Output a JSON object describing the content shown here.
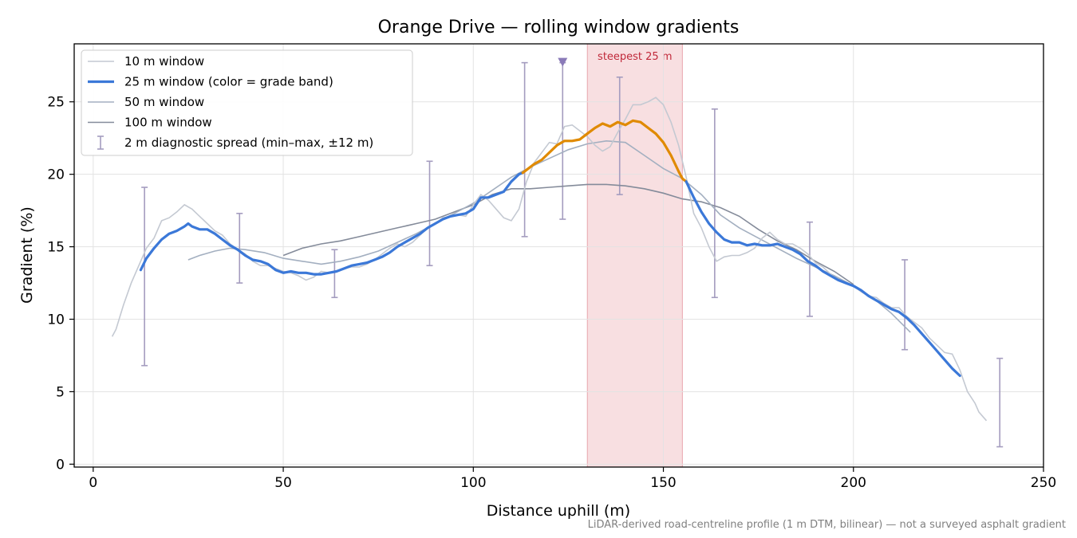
{
  "chart_data": {
    "type": "line",
    "title": "Orange Drive — rolling window gradients",
    "xlabel": "Distance uphill (m)",
    "ylabel": "Gradient (%)",
    "xlim": [
      -5,
      250
    ],
    "ylim": [
      -0.2,
      29
    ],
    "xticks": [
      0,
      50,
      100,
      150,
      200,
      250
    ],
    "yticks": [
      0,
      5,
      10,
      15,
      20,
      25
    ],
    "grid": true,
    "legend_position": "upper-left",
    "legend": [
      "10 m window",
      "25 m window (color = grade band)",
      "50 m window",
      "100 m window",
      "2 m diagnostic spread (min–max, ±12 m)"
    ],
    "series": [
      {
        "name": "10 m window",
        "color": "#c4c9d2",
        "x": [
          5,
          6,
          8,
          10,
          12,
          14,
          16,
          18,
          20,
          22,
          24,
          26,
          28,
          30,
          32,
          34,
          36,
          38,
          40,
          42,
          44,
          46,
          48,
          50,
          52,
          54,
          56,
          58,
          60,
          62,
          64,
          66,
          68,
          70,
          72,
          74,
          76,
          78,
          80,
          82,
          84,
          86,
          88,
          90,
          92,
          94,
          96,
          98,
          100,
          102,
          104,
          106,
          108,
          110,
          112,
          114,
          116,
          118,
          120,
          122,
          124,
          126,
          128,
          130,
          132,
          134,
          136,
          138,
          140,
          142,
          144,
          146,
          148,
          150,
          152,
          154,
          156,
          158,
          160,
          162,
          164,
          166,
          168,
          170,
          172,
          174,
          176,
          178,
          180,
          182,
          184,
          186,
          188,
          190,
          192,
          194,
          196,
          198,
          200,
          202,
          204,
          206,
          208,
          210,
          212,
          214,
          216,
          218,
          220,
          222,
          224,
          226,
          228,
          230,
          232,
          233,
          235
        ],
        "y": [
          8.8,
          9.3,
          11.0,
          12.5,
          13.7,
          14.9,
          15.6,
          16.8,
          17.0,
          17.4,
          17.9,
          17.6,
          17.1,
          16.6,
          16.1,
          15.8,
          15.2,
          14.8,
          14.5,
          14.0,
          13.7,
          13.7,
          13.5,
          13.3,
          13.2,
          13.0,
          12.7,
          12.9,
          13.3,
          13.2,
          13.3,
          13.5,
          13.6,
          13.6,
          13.8,
          14.1,
          14.5,
          14.9,
          15.2,
          15.0,
          15.3,
          15.8,
          16.3,
          16.6,
          17.0,
          17.1,
          17.2,
          17.1,
          17.9,
          18.6,
          18.2,
          17.6,
          17.0,
          16.8,
          17.6,
          19.5,
          20.8,
          21.5,
          22.2,
          22.1,
          23.3,
          23.4,
          23.0,
          22.6,
          22.0,
          21.6,
          21.9,
          22.9,
          23.8,
          24.8,
          24.8,
          25.0,
          25.3,
          24.8,
          23.6,
          22.0,
          19.8,
          17.3,
          16.3,
          15.0,
          14.0,
          14.3,
          14.4,
          14.4,
          14.6,
          14.9,
          15.6,
          16.0,
          15.5,
          15.2,
          15.2,
          14.9,
          14.5,
          13.9,
          13.6,
          13.1,
          12.7,
          12.5,
          12.3,
          11.9,
          11.6,
          11.5,
          11.1,
          10.8,
          10.8,
          10.2,
          9.8,
          9.4,
          8.7,
          8.2,
          7.7,
          7.6,
          6.5,
          5.0,
          4.2,
          3.6,
          3.0
        ]
      },
      {
        "name": "25 m window (color = grade band)",
        "color": "#3b78d8",
        "band_color": "#e08a00",
        "band_range": [
          113,
          155
        ],
        "x": [
          12.5,
          14,
          16,
          18,
          20,
          22,
          24,
          25,
          26,
          28,
          30,
          32,
          34,
          36,
          38,
          40,
          42,
          44,
          46,
          48,
          50,
          52,
          54,
          56,
          58,
          60,
          62,
          64,
          66,
          68,
          70,
          72,
          74,
          76,
          78,
          80,
          82,
          84,
          86,
          88,
          90,
          92,
          94,
          96,
          98,
          100,
          102,
          104,
          106,
          108,
          110,
          112,
          113,
          114,
          116,
          118,
          120,
          122,
          124,
          126,
          128,
          130,
          132,
          134,
          136,
          138,
          140,
          142,
          144,
          146,
          148,
          150,
          152,
          154,
          155,
          156,
          158,
          160,
          162,
          164,
          166,
          168,
          170,
          172,
          174,
          176,
          178,
          180,
          182,
          184,
          186,
          188,
          190,
          192,
          194,
          196,
          198,
          200,
          202,
          204,
          206,
          208,
          210,
          212,
          214,
          216,
          218,
          220,
          222,
          224,
          226,
          228
        ],
        "y": [
          13.4,
          14.2,
          14.9,
          15.5,
          15.9,
          16.1,
          16.4,
          16.6,
          16.4,
          16.2,
          16.2,
          15.9,
          15.5,
          15.1,
          14.8,
          14.4,
          14.1,
          14.0,
          13.8,
          13.4,
          13.2,
          13.3,
          13.2,
          13.2,
          13.1,
          13.1,
          13.2,
          13.3,
          13.5,
          13.7,
          13.8,
          13.9,
          14.1,
          14.3,
          14.6,
          15.0,
          15.3,
          15.6,
          15.9,
          16.3,
          16.6,
          16.9,
          17.1,
          17.2,
          17.3,
          17.6,
          18.4,
          18.4,
          18.6,
          18.8,
          19.5,
          20.0,
          20.1,
          20.3,
          20.7,
          21.0,
          21.5,
          22.0,
          22.3,
          22.3,
          22.4,
          22.8,
          23.2,
          23.5,
          23.3,
          23.6,
          23.4,
          23.7,
          23.6,
          23.2,
          22.8,
          22.2,
          21.3,
          20.2,
          19.7,
          19.5,
          18.4,
          17.4,
          16.6,
          16.0,
          15.5,
          15.3,
          15.3,
          15.1,
          15.2,
          15.1,
          15.1,
          15.2,
          15.0,
          14.8,
          14.5,
          14.0,
          13.7,
          13.3,
          13.0,
          12.7,
          12.5,
          12.3,
          12.0,
          11.6,
          11.3,
          11.0,
          10.7,
          10.5,
          10.1,
          9.6,
          9.0,
          8.4,
          7.8,
          7.2,
          6.6,
          6.1
        ]
      },
      {
        "name": "50 m window",
        "color": "#a3afc0",
        "x": [
          25,
          28,
          32,
          36,
          40,
          45,
          50,
          55,
          60,
          65,
          70,
          75,
          80,
          85,
          90,
          95,
          100,
          105,
          110,
          115,
          120,
          125,
          130,
          135,
          140,
          145,
          150,
          155,
          160,
          165,
          170,
          175,
          180,
          185,
          190,
          195,
          200,
          205,
          210,
          215
        ],
        "y": [
          14.1,
          14.4,
          14.7,
          14.9,
          14.8,
          14.6,
          14.2,
          14.0,
          13.8,
          14.0,
          14.3,
          14.7,
          15.3,
          15.9,
          16.6,
          17.3,
          18.0,
          18.9,
          19.8,
          20.5,
          21.1,
          21.7,
          22.1,
          22.3,
          22.2,
          21.3,
          20.4,
          19.7,
          18.6,
          17.2,
          16.3,
          15.6,
          14.9,
          14.2,
          13.6,
          13.0,
          12.3,
          11.5,
          10.4,
          9.1
        ]
      },
      {
        "name": "100 m window",
        "color": "#848b9a",
        "x": [
          50,
          55,
          60,
          65,
          70,
          75,
          80,
          85,
          90,
          95,
          100,
          105,
          110,
          115,
          120,
          125,
          130,
          135,
          140,
          145,
          150,
          155,
          160,
          165,
          170,
          175,
          180,
          185,
          190,
          195,
          200
        ],
        "y": [
          14.4,
          14.9,
          15.2,
          15.4,
          15.7,
          16.0,
          16.3,
          16.6,
          16.9,
          17.4,
          17.9,
          18.6,
          19.0,
          19.0,
          19.1,
          19.2,
          19.3,
          19.3,
          19.2,
          19.0,
          18.7,
          18.3,
          18.1,
          17.7,
          17.1,
          16.2,
          15.4,
          14.8,
          14.0,
          13.3,
          12.4
        ]
      }
    ],
    "error_bars": {
      "name": "2 m diagnostic spread (min–max, ±12 m)",
      "color": "#a49cbf",
      "x": [
        13.5,
        38.5,
        63.5,
        88.5,
        113.5,
        123.5,
        138.5,
        163.5,
        188.5,
        213.5,
        238.5
      ],
      "min": [
        6.8,
        12.5,
        11.5,
        13.7,
        15.7,
        16.9,
        18.6,
        11.5,
        10.2,
        7.9,
        1.2
      ],
      "max": [
        19.1,
        17.3,
        14.8,
        20.9,
        27.7,
        27.7,
        26.7,
        24.5,
        16.7,
        14.1,
        7.3
      ]
    },
    "marker": {
      "x": 123.5,
      "y": 27.7,
      "symbol": "triangle-down",
      "color": "#8a7ab8"
    },
    "highlight_span": {
      "x0": 130,
      "x1": 155,
      "label": "steepest 25 m",
      "color": "#f2c4c9",
      "label_color": "#c0293a"
    },
    "footnote": "LiDAR-derived road-centreline profile (1 m DTM, bilinear) — not a surveyed asphalt gradient"
  }
}
